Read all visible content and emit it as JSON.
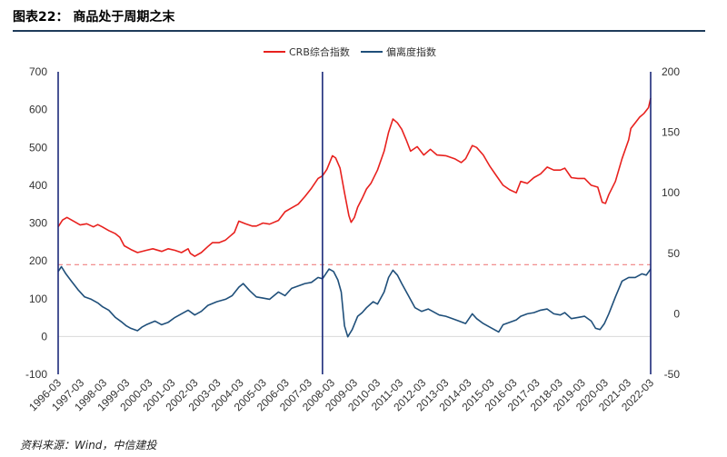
{
  "figure": {
    "title": "图表22： 商品处于周期之末",
    "source": "资料来源：Wind，中信建投"
  },
  "chart_data": {
    "type": "line",
    "title": "",
    "xlabel": "",
    "ylabel": "",
    "legend_position": "top-center",
    "grid": false,
    "x_categories": [
      "1996-03",
      "1997-03",
      "1998-03",
      "1999-03",
      "2000-03",
      "2001-03",
      "2002-03",
      "2003-03",
      "2004-03",
      "2005-03",
      "2006-03",
      "2007-03",
      "2008-03",
      "2009-03",
      "2010-03",
      "2011-03",
      "2012-03",
      "2013-03",
      "2014-03",
      "2015-03",
      "2016-03",
      "2017-03",
      "2018-03",
      "2019-03",
      "2020-03",
      "2021-03",
      "2022-03"
    ],
    "y_left": {
      "min": -100,
      "max": 700,
      "ticks": [
        "-100",
        "0",
        "100",
        "200",
        "300",
        "400",
        "500",
        "600",
        "700"
      ]
    },
    "y_right": {
      "min": -50,
      "max": 200,
      "ticks": [
        "-50",
        "0",
        "50",
        "100",
        "150",
        "200"
      ]
    },
    "series": [
      {
        "name": "CRB综合指数",
        "axis": "left",
        "color": "#e8211e",
        "points": [
          [
            1996.0,
            290
          ],
          [
            1996.2,
            308
          ],
          [
            1996.4,
            315
          ],
          [
            1996.7,
            305
          ],
          [
            1997.0,
            295
          ],
          [
            1997.3,
            298
          ],
          [
            1997.6,
            290
          ],
          [
            1997.8,
            296
          ],
          [
            1998.0,
            290
          ],
          [
            1998.3,
            280
          ],
          [
            1998.6,
            272
          ],
          [
            1998.8,
            262
          ],
          [
            1999.0,
            240
          ],
          [
            1999.3,
            230
          ],
          [
            1999.6,
            222
          ],
          [
            2000.0,
            228
          ],
          [
            2000.3,
            232
          ],
          [
            2000.7,
            225
          ],
          [
            2001.0,
            232
          ],
          [
            2001.3,
            228
          ],
          [
            2001.6,
            222
          ],
          [
            2001.9,
            232
          ],
          [
            2002.0,
            220
          ],
          [
            2002.2,
            212
          ],
          [
            2002.5,
            222
          ],
          [
            2002.8,
            238
          ],
          [
            2003.0,
            248
          ],
          [
            2003.3,
            248
          ],
          [
            2003.6,
            255
          ],
          [
            2004.0,
            275
          ],
          [
            2004.2,
            305
          ],
          [
            2004.5,
            298
          ],
          [
            2004.8,
            292
          ],
          [
            2005.0,
            292
          ],
          [
            2005.3,
            300
          ],
          [
            2005.6,
            297
          ],
          [
            2006.0,
            307
          ],
          [
            2006.3,
            330
          ],
          [
            2006.6,
            340
          ],
          [
            2006.9,
            350
          ],
          [
            2007.2,
            370
          ],
          [
            2007.5,
            392
          ],
          [
            2007.8,
            418
          ],
          [
            2008.0,
            425
          ],
          [
            2008.2,
            442
          ],
          [
            2008.45,
            478
          ],
          [
            2008.6,
            472
          ],
          [
            2008.8,
            445
          ],
          [
            2009.0,
            380
          ],
          [
            2009.2,
            320
          ],
          [
            2009.3,
            302
          ],
          [
            2009.45,
            315
          ],
          [
            2009.6,
            342
          ],
          [
            2009.8,
            365
          ],
          [
            2010.0,
            390
          ],
          [
            2010.2,
            405
          ],
          [
            2010.5,
            440
          ],
          [
            2010.8,
            490
          ],
          [
            2011.0,
            540
          ],
          [
            2011.2,
            575
          ],
          [
            2011.4,
            565
          ],
          [
            2011.6,
            548
          ],
          [
            2011.8,
            520
          ],
          [
            2012.0,
            490
          ],
          [
            2012.3,
            502
          ],
          [
            2012.6,
            480
          ],
          [
            2012.9,
            495
          ],
          [
            2013.2,
            480
          ],
          [
            2013.6,
            478
          ],
          [
            2014.0,
            470
          ],
          [
            2014.3,
            460
          ],
          [
            2014.5,
            470
          ],
          [
            2014.8,
            505
          ],
          [
            2015.0,
            500
          ],
          [
            2015.3,
            480
          ],
          [
            2015.6,
            450
          ],
          [
            2015.9,
            425
          ],
          [
            2016.2,
            400
          ],
          [
            2016.5,
            388
          ],
          [
            2016.8,
            380
          ],
          [
            2017.0,
            410
          ],
          [
            2017.3,
            405
          ],
          [
            2017.6,
            420
          ],
          [
            2017.9,
            430
          ],
          [
            2018.2,
            448
          ],
          [
            2018.5,
            440
          ],
          [
            2018.8,
            440
          ],
          [
            2019.0,
            445
          ],
          [
            2019.3,
            420
          ],
          [
            2019.6,
            418
          ],
          [
            2019.9,
            418
          ],
          [
            2020.2,
            400
          ],
          [
            2020.5,
            395
          ],
          [
            2020.7,
            355
          ],
          [
            2020.85,
            352
          ],
          [
            2021.0,
            375
          ],
          [
            2021.3,
            410
          ],
          [
            2021.6,
            470
          ],
          [
            2021.9,
            520
          ],
          [
            2022.0,
            550
          ],
          [
            2022.2,
            565
          ],
          [
            2022.4,
            580
          ],
          [
            2022.6,
            590
          ],
          [
            2022.8,
            605
          ],
          [
            2022.9,
            630
          ]
        ]
      },
      {
        "name": "偏离度指数",
        "axis": "right",
        "color": "#1f4f7a",
        "points": [
          [
            1996.0,
            35
          ],
          [
            1996.15,
            39
          ],
          [
            1996.35,
            33
          ],
          [
            1996.6,
            27
          ],
          [
            1996.9,
            20
          ],
          [
            1997.2,
            14
          ],
          [
            1997.5,
            12
          ],
          [
            1997.8,
            9
          ],
          [
            1998.0,
            6
          ],
          [
            1998.3,
            3
          ],
          [
            1998.6,
            -3
          ],
          [
            1998.9,
            -7
          ],
          [
            1999.1,
            -10
          ],
          [
            1999.3,
            -12
          ],
          [
            1999.6,
            -14
          ],
          [
            1999.8,
            -11
          ],
          [
            2000.0,
            -9
          ],
          [
            2000.4,
            -6
          ],
          [
            2000.7,
            -9
          ],
          [
            2001.0,
            -7
          ],
          [
            2001.3,
            -3
          ],
          [
            2001.6,
            0
          ],
          [
            2001.9,
            3
          ],
          [
            2002.2,
            -1
          ],
          [
            2002.5,
            2
          ],
          [
            2002.8,
            7
          ],
          [
            2003.2,
            10
          ],
          [
            2003.6,
            12
          ],
          [
            2003.9,
            15
          ],
          [
            2004.2,
            22
          ],
          [
            2004.4,
            25
          ],
          [
            2004.7,
            19
          ],
          [
            2005.0,
            14
          ],
          [
            2005.3,
            13
          ],
          [
            2005.6,
            12
          ],
          [
            2006.0,
            18
          ],
          [
            2006.3,
            15
          ],
          [
            2006.6,
            21
          ],
          [
            2006.9,
            23
          ],
          [
            2007.2,
            25
          ],
          [
            2007.5,
            26
          ],
          [
            2007.8,
            30
          ],
          [
            2008.0,
            29
          ],
          [
            2008.3,
            37
          ],
          [
            2008.5,
            35
          ],
          [
            2008.7,
            28
          ],
          [
            2008.85,
            18
          ],
          [
            2009.0,
            -10
          ],
          [
            2009.15,
            -19
          ],
          [
            2009.35,
            -13
          ],
          [
            2009.6,
            -2
          ],
          [
            2009.8,
            1
          ],
          [
            2010.0,
            5
          ],
          [
            2010.3,
            10
          ],
          [
            2010.5,
            8
          ],
          [
            2010.8,
            18
          ],
          [
            2011.0,
            30
          ],
          [
            2011.2,
            36
          ],
          [
            2011.4,
            32
          ],
          [
            2011.6,
            25
          ],
          [
            2011.9,
            15
          ],
          [
            2012.2,
            5
          ],
          [
            2012.5,
            2
          ],
          [
            2012.8,
            4
          ],
          [
            2013.0,
            2
          ],
          [
            2013.3,
            -1
          ],
          [
            2013.6,
            -2
          ],
          [
            2013.9,
            -4
          ],
          [
            2014.2,
            -6
          ],
          [
            2014.5,
            -8
          ],
          [
            2014.8,
            0
          ],
          [
            2015.0,
            -4
          ],
          [
            2015.3,
            -8
          ],
          [
            2015.7,
            -12
          ],
          [
            2016.0,
            -15
          ],
          [
            2016.2,
            -9
          ],
          [
            2016.5,
            -7
          ],
          [
            2016.8,
            -5
          ],
          [
            2017.0,
            -2
          ],
          [
            2017.3,
            0
          ],
          [
            2017.6,
            1
          ],
          [
            2017.9,
            3
          ],
          [
            2018.2,
            4
          ],
          [
            2018.5,
            0
          ],
          [
            2018.8,
            -1
          ],
          [
            2019.0,
            1
          ],
          [
            2019.3,
            -4
          ],
          [
            2019.6,
            -3
          ],
          [
            2019.9,
            -2
          ],
          [
            2020.2,
            -6
          ],
          [
            2020.4,
            -12
          ],
          [
            2020.6,
            -13
          ],
          [
            2020.8,
            -8
          ],
          [
            2021.0,
            0
          ],
          [
            2021.3,
            14
          ],
          [
            2021.6,
            27
          ],
          [
            2021.9,
            30
          ],
          [
            2022.2,
            30
          ],
          [
            2022.5,
            33
          ],
          [
            2022.7,
            32
          ],
          [
            2022.9,
            37
          ]
        ]
      }
    ],
    "reference_line": {
      "axis": "left",
      "value": 190,
      "color": "#f08080",
      "style": "dashed"
    },
    "vertical_markers": {
      "color": "#1c2a7a",
      "x": [
        1996.0,
        2008.0,
        2022.9
      ]
    }
  }
}
